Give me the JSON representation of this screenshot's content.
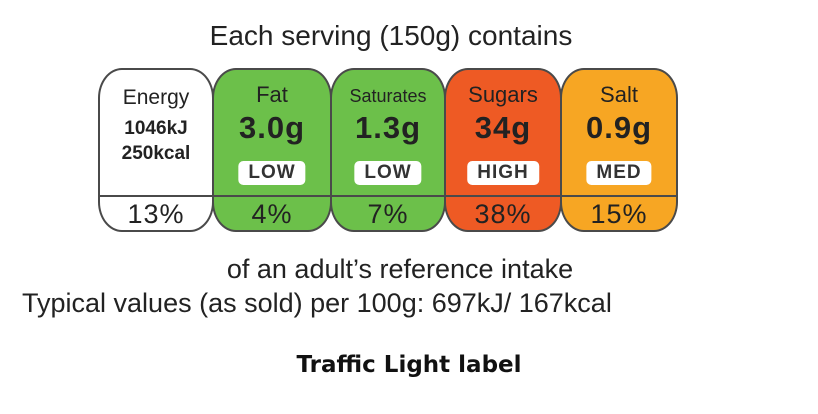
{
  "header": "Each serving (150g) contains",
  "energy": {
    "name": "Energy",
    "kj": "1046kJ",
    "kcal": "250kcal",
    "percent": "13%"
  },
  "nutrients": {
    "fat": {
      "name": "Fat",
      "amount": "3.0g",
      "level": "LOW",
      "percent": "4%",
      "color": "#6cc04a"
    },
    "saturates": {
      "name": "Saturates",
      "amount": "1.3g",
      "level": "LOW",
      "percent": "7%",
      "color": "#6cc04a"
    },
    "sugars": {
      "name": "Sugars",
      "amount": "34g",
      "level": "HIGH",
      "percent": "38%",
      "color": "#ee5a24"
    },
    "salt": {
      "name": "Salt",
      "amount": "0.9g",
      "level": "MED",
      "percent": "15%",
      "color": "#f7a623"
    }
  },
  "reference_text": "of an adult’s reference intake",
  "typical_values": "Typical values (as sold) per 100g: 697kJ/ 167kcal",
  "caption": "Traffic Light label"
}
